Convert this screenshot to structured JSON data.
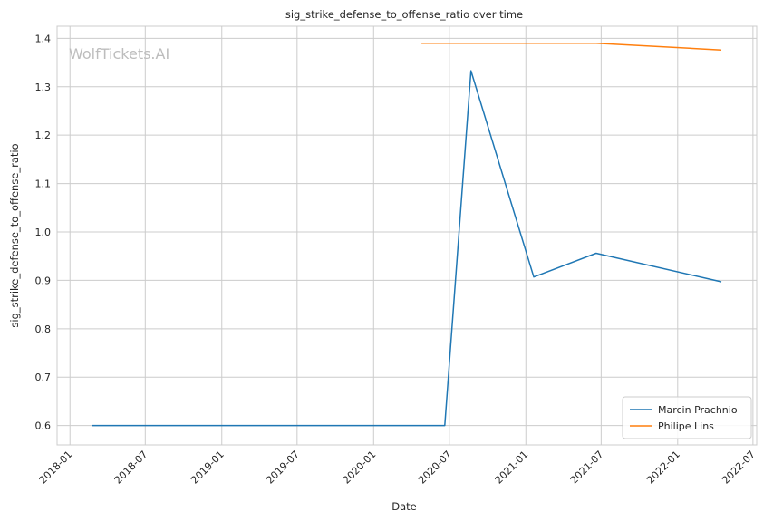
{
  "chart_data": {
    "type": "line",
    "title": "sig_strike_defense_to_offense_ratio over time",
    "xlabel": "Date",
    "ylabel": "sig_strike_defense_to_offense_ratio",
    "watermark": "WolfTickets.AI",
    "x_ticks": [
      "2018-01",
      "2018-07",
      "2019-01",
      "2019-07",
      "2020-01",
      "2020-07",
      "2021-01",
      "2021-07",
      "2022-01",
      "2022-07"
    ],
    "y_ticks": [
      "0.6",
      "0.7",
      "0.8",
      "0.9",
      "1.0",
      "1.1",
      "1.2",
      "1.3",
      "1.4"
    ],
    "xlim": [
      "2017-12-01",
      "2022-07-10"
    ],
    "ylim": [
      0.56,
      1.425
    ],
    "grid": true,
    "legend_position": "lower-right",
    "series": [
      {
        "name": "Marcin Prachnio",
        "color": "#1f77b4",
        "points": [
          {
            "x": "2018-02-24",
            "y": 0.6
          },
          {
            "x": "2020-06-20",
            "y": 0.6
          },
          {
            "x": "2020-08-22",
            "y": 1.333
          },
          {
            "x": "2021-01-20",
            "y": 0.907
          },
          {
            "x": "2021-06-19",
            "y": 0.956
          },
          {
            "x": "2022-04-16",
            "y": 0.897
          }
        ]
      },
      {
        "name": "Philipe Lins",
        "color": "#ff7f0e",
        "points": [
          {
            "x": "2020-04-25",
            "y": 1.39
          },
          {
            "x": "2021-06-19",
            "y": 1.39
          },
          {
            "x": "2022-04-16",
            "y": 1.376
          }
        ]
      }
    ]
  }
}
